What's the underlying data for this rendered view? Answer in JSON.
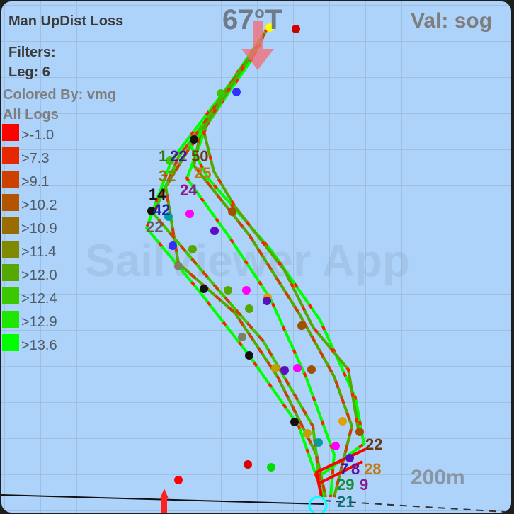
{
  "header": {
    "title": "Man UpDist Loss",
    "filters_label": "Filters:",
    "leg_filter": "Leg: 6",
    "colored_by": "Colored By: vmg",
    "logs": "All Logs",
    "heading": "67°T",
    "value": "Val: sog"
  },
  "legend": [
    {
      "label": ">-1.0",
      "color": "#ff0000"
    },
    {
      "label": ">7.3",
      "color": "#e62800"
    },
    {
      "label": ">9.1",
      "color": "#cc4000"
    },
    {
      "label": ">10.2",
      "color": "#b35500"
    },
    {
      "label": ">10.9",
      "color": "#996c00"
    },
    {
      "label": ">11.4",
      "color": "#808a00"
    },
    {
      "label": ">12.0",
      "color": "#55a800"
    },
    {
      "label": ">12.4",
      "color": "#3cc800"
    },
    {
      "label": ">12.9",
      "color": "#1ee600"
    },
    {
      "label": ">13.6",
      "color": "#00ff00"
    }
  ],
  "map": {
    "scale": "200m",
    "watermark": "SailViewer App",
    "wind_arrow_color": "#f0707a"
  },
  "boat_labels": [
    {
      "text": "1",
      "color": "#2a7a1a"
    },
    {
      "text": "22",
      "color": "#3a1aa0"
    },
    {
      "text": "50",
      "color": "#6b3a10"
    },
    {
      "text": "25",
      "color": "#c07a10"
    },
    {
      "text": "32",
      "color": "#8a7a10"
    },
    {
      "text": "24",
      "color": "#8a1a8a"
    },
    {
      "text": "14",
      "color": "#111111"
    },
    {
      "text": "42",
      "color": "#2020b0"
    },
    {
      "text": "22",
      "color": "#606060"
    },
    {
      "text": "22",
      "color": "#6b3a10"
    },
    {
      "text": "7",
      "color": "#2020b0"
    },
    {
      "text": "8",
      "color": "#5a10a0"
    },
    {
      "text": "28",
      "color": "#c07a10"
    },
    {
      "text": "29",
      "color": "#1a8a3a"
    },
    {
      "text": "9",
      "color": "#8a1a8a"
    },
    {
      "text": "21",
      "color": "#107070"
    }
  ]
}
